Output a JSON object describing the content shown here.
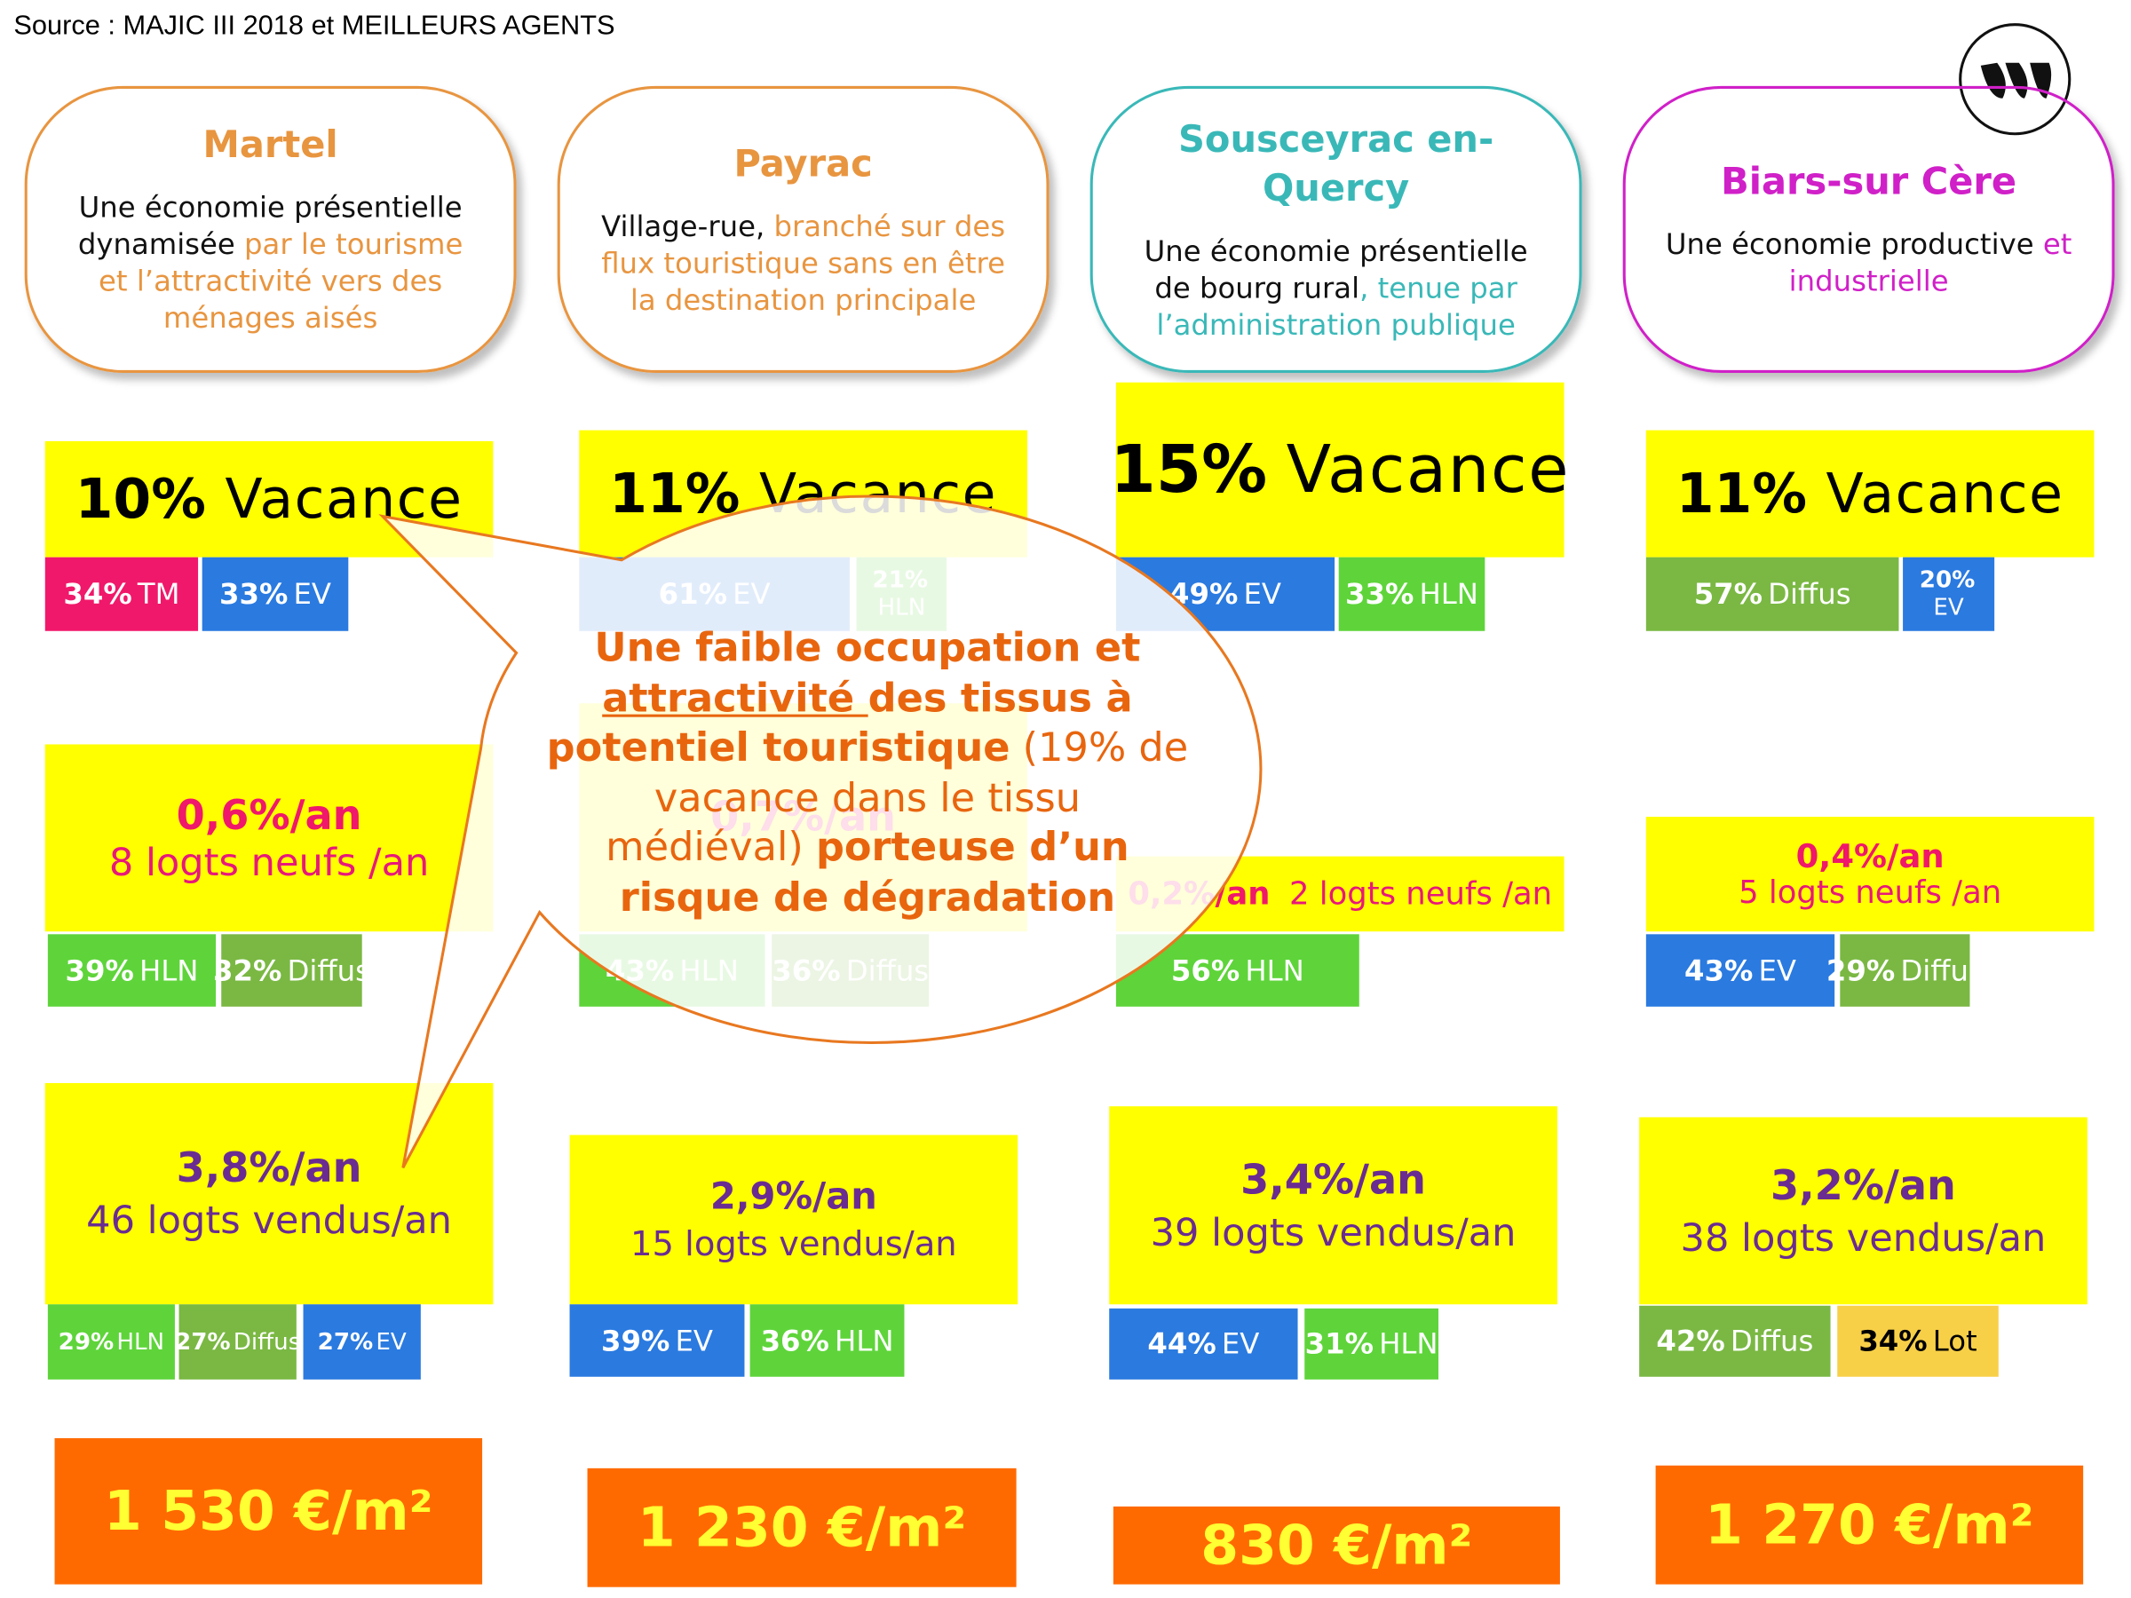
{
  "source": "Source : MAJIC III 2018 et MEILLEURS AGENTS",
  "columns": [
    {
      "name": "Martel",
      "accent": "#e89540",
      "description": [
        {
          "text": "Une économie présentielle dynamisée ",
          "accent": false
        },
        {
          "text": "par le tourisme et l’attractivité vers des ménages aisés",
          "accent": true
        }
      ],
      "vacancy": {
        "value": "10%",
        "label": "Vacance"
      },
      "vacancy_breakdown": [
        {
          "value": "34%",
          "label": "TM",
          "color": "#f0186a",
          "text_color": "#ffffff"
        },
        {
          "value": "33%",
          "label": "EV",
          "color": "#2a7ae0",
          "text_color": "#ffffff"
        }
      ],
      "construction": {
        "rate": "0,6%/an",
        "text": "8 logts neufs /an"
      },
      "construction_breakdown": [
        {
          "value": "39%",
          "label": "HLN",
          "color": "#5ed43a",
          "text_color": "#ffffff"
        },
        {
          "value": "32%",
          "label": "Diffus",
          "color": "#7ab843",
          "text_color": "#ffffff"
        }
      ],
      "sales": {
        "rate": "3,8%/an",
        "text": "46 logts vendus/an"
      },
      "sales_breakdown": [
        {
          "value": "29%",
          "label": "HLN",
          "color": "#5ed43a",
          "text_color": "#ffffff"
        },
        {
          "value": "27%",
          "label": "Diffus",
          "color": "#7ab843",
          "text_color": "#ffffff"
        },
        {
          "value": "27%",
          "label": "EV",
          "color": "#2a7ae0",
          "text_color": "#ffffff"
        }
      ],
      "price": "1 530 €/m²"
    },
    {
      "name": "Payrac",
      "accent": "#e89540",
      "description": [
        {
          "text": "Village-rue, ",
          "accent": false
        },
        {
          "text": "branché sur des flux touristique sans en être la destination principale",
          "accent": true
        }
      ],
      "vacancy": {
        "value": "11%",
        "label": "Vacance"
      },
      "vacancy_breakdown": [
        {
          "value": "61%",
          "label": "EV",
          "color": "#2a7ae0",
          "text_color": "#ffffff"
        },
        {
          "value": "21%",
          "label": "HLN",
          "color": "#5ed43a",
          "text_color": "#ffffff"
        }
      ],
      "construction": {
        "rate": "0,7%/an"
      },
      "construction_breakdown": [
        {
          "value": "43%",
          "label": "HLN",
          "color": "#5ed43a",
          "text_color": "#ffffff"
        },
        {
          "value": "36%",
          "label": "Diffus",
          "color": "#7ab843",
          "text_color": "#ffffff"
        }
      ],
      "sales": {
        "rate": "2,9%/an",
        "text": "15 logts vendus/an"
      },
      "sales_breakdown": [
        {
          "value": "39%",
          "label": "EV",
          "color": "#2a7ae0",
          "text_color": "#ffffff"
        },
        {
          "value": "36%",
          "label": "HLN",
          "color": "#5ed43a",
          "text_color": "#ffffff"
        }
      ],
      "price": "1 230 €/m²"
    },
    {
      "name": "Sousceyrac en-Quercy",
      "accent": "#3ab8b8",
      "description": [
        {
          "text": "Une économie présentielle de bourg rural",
          "accent": false
        },
        {
          "text": ", tenue par l’administration publique",
          "accent": true
        }
      ],
      "vacancy": {
        "value": "15%",
        "label": "Vacance"
      },
      "vacancy_breakdown": [
        {
          "value": "49%",
          "label": "EV",
          "color": "#2a7ae0",
          "text_color": "#ffffff"
        },
        {
          "value": "33%",
          "label": "HLN",
          "color": "#5ed43a",
          "text_color": "#ffffff"
        }
      ],
      "construction": {
        "rate": "0,2%/an",
        "text": "2 logts neufs /an"
      },
      "construction_breakdown": [
        {
          "value": "56%",
          "label": "HLN",
          "color": "#5ed43a",
          "text_color": "#ffffff"
        }
      ],
      "sales": {
        "rate": "3,4%/an",
        "text": "39 logts vendus/an"
      },
      "sales_breakdown": [
        {
          "value": "44%",
          "label": "EV",
          "color": "#2a7ae0",
          "text_color": "#ffffff"
        },
        {
          "value": "31%",
          "label": "HLN",
          "color": "#5ed43a",
          "text_color": "#ffffff"
        }
      ],
      "price": "830 €/m²"
    },
    {
      "name": "Biars-sur Cère",
      "accent": "#d020c8",
      "description": [
        {
          "text": "Une économie productive ",
          "accent": false
        },
        {
          "text": "et industrielle",
          "accent": true
        }
      ],
      "vacancy": {
        "value": "11%",
        "label": "Vacance"
      },
      "vacancy_breakdown": [
        {
          "value": "57%",
          "label": "Diffus",
          "color": "#7ab843",
          "text_color": "#ffffff"
        },
        {
          "value": "20%",
          "label": "EV",
          "color": "#2a7ae0",
          "text_color": "#ffffff"
        }
      ],
      "construction": {
        "rate": "0,4%/an",
        "text": "5 logts neufs /an"
      },
      "construction_breakdown": [
        {
          "value": "43%",
          "label": "EV",
          "color": "#2a7ae0",
          "text_color": "#ffffff"
        },
        {
          "value": "29%",
          "label": "Diffus",
          "color": "#7ab843",
          "text_color": "#ffffff"
        }
      ],
      "sales": {
        "rate": "3,2%/an",
        "text": "38 logts vendus/an"
      },
      "sales_breakdown": [
        {
          "value": "42%",
          "label": "Diffus",
          "color": "#7ab843",
          "text_color": "#ffffff"
        },
        {
          "value": "34%",
          "label": "Lot",
          "color": "#f8d048",
          "text_color": "#000000"
        }
      ],
      "price": "1 270 €/m²"
    }
  ],
  "callout": {
    "lines": [
      [
        {
          "text": "Une faible occupation et",
          "bold": true
        }
      ],
      [
        {
          "text": "attractivité ",
          "bold": true,
          "underline": true
        },
        {
          "text": "des tissus à",
          "bold": true
        }
      ],
      [
        {
          "text": "potentiel touristique",
          "bold": true
        },
        {
          "text": " (19% de",
          "bold": false
        }
      ],
      [
        {
          "text": "vacance dans le tissu",
          "bold": false
        }
      ],
      [
        {
          "text": "médiéval) ",
          "bold": false
        },
        {
          "text": "porteuse d’un",
          "bold": true
        }
      ],
      [
        {
          "text": "risque de dégradation",
          "bold": true
        }
      ]
    ]
  }
}
